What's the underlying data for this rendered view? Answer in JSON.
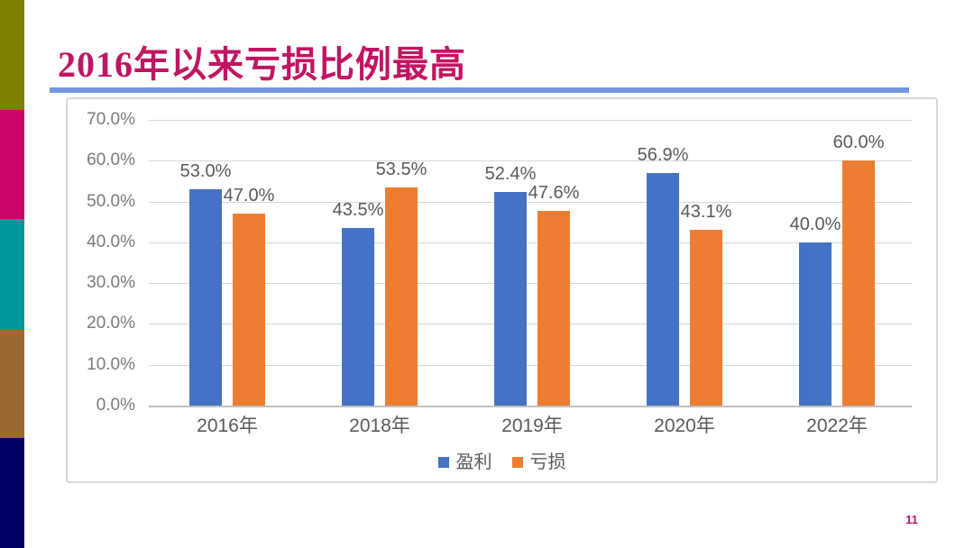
{
  "slide": {
    "title": "2016年以来亏损比例最高",
    "page_number": "11",
    "title_color": "#c01562",
    "rule_color": "#7297e0",
    "stripe_colors": [
      "#7f7f00",
      "#ce0568",
      "#009999",
      "#9c6833",
      "#000066"
    ]
  },
  "chart_data": {
    "type": "bar",
    "categories": [
      "2016年",
      "2018年",
      "2019年",
      "2020年",
      "2022年"
    ],
    "series": [
      {
        "name": "盈利",
        "color": "#4472c4",
        "values": [
          53.0,
          43.5,
          52.4,
          56.9,
          40.0
        ],
        "labels": [
          "53.0%",
          "43.5%",
          "52.4%",
          "56.9%",
          "40.0%"
        ]
      },
      {
        "name": "亏损",
        "color": "#ed7d31",
        "values": [
          47.0,
          53.5,
          47.6,
          43.1,
          60.0
        ],
        "labels": [
          "47.0%",
          "53.5%",
          "47.6%",
          "43.1%",
          "60.0%"
        ]
      }
    ],
    "y_axis": {
      "ticks": [
        "70.0%",
        "60.0%",
        "50.0%",
        "40.0%",
        "30.0%",
        "20.0%",
        "10.0%",
        "0.0%"
      ],
      "min": 0,
      "max": 70
    },
    "grid": true,
    "legend_position": "bottom"
  }
}
